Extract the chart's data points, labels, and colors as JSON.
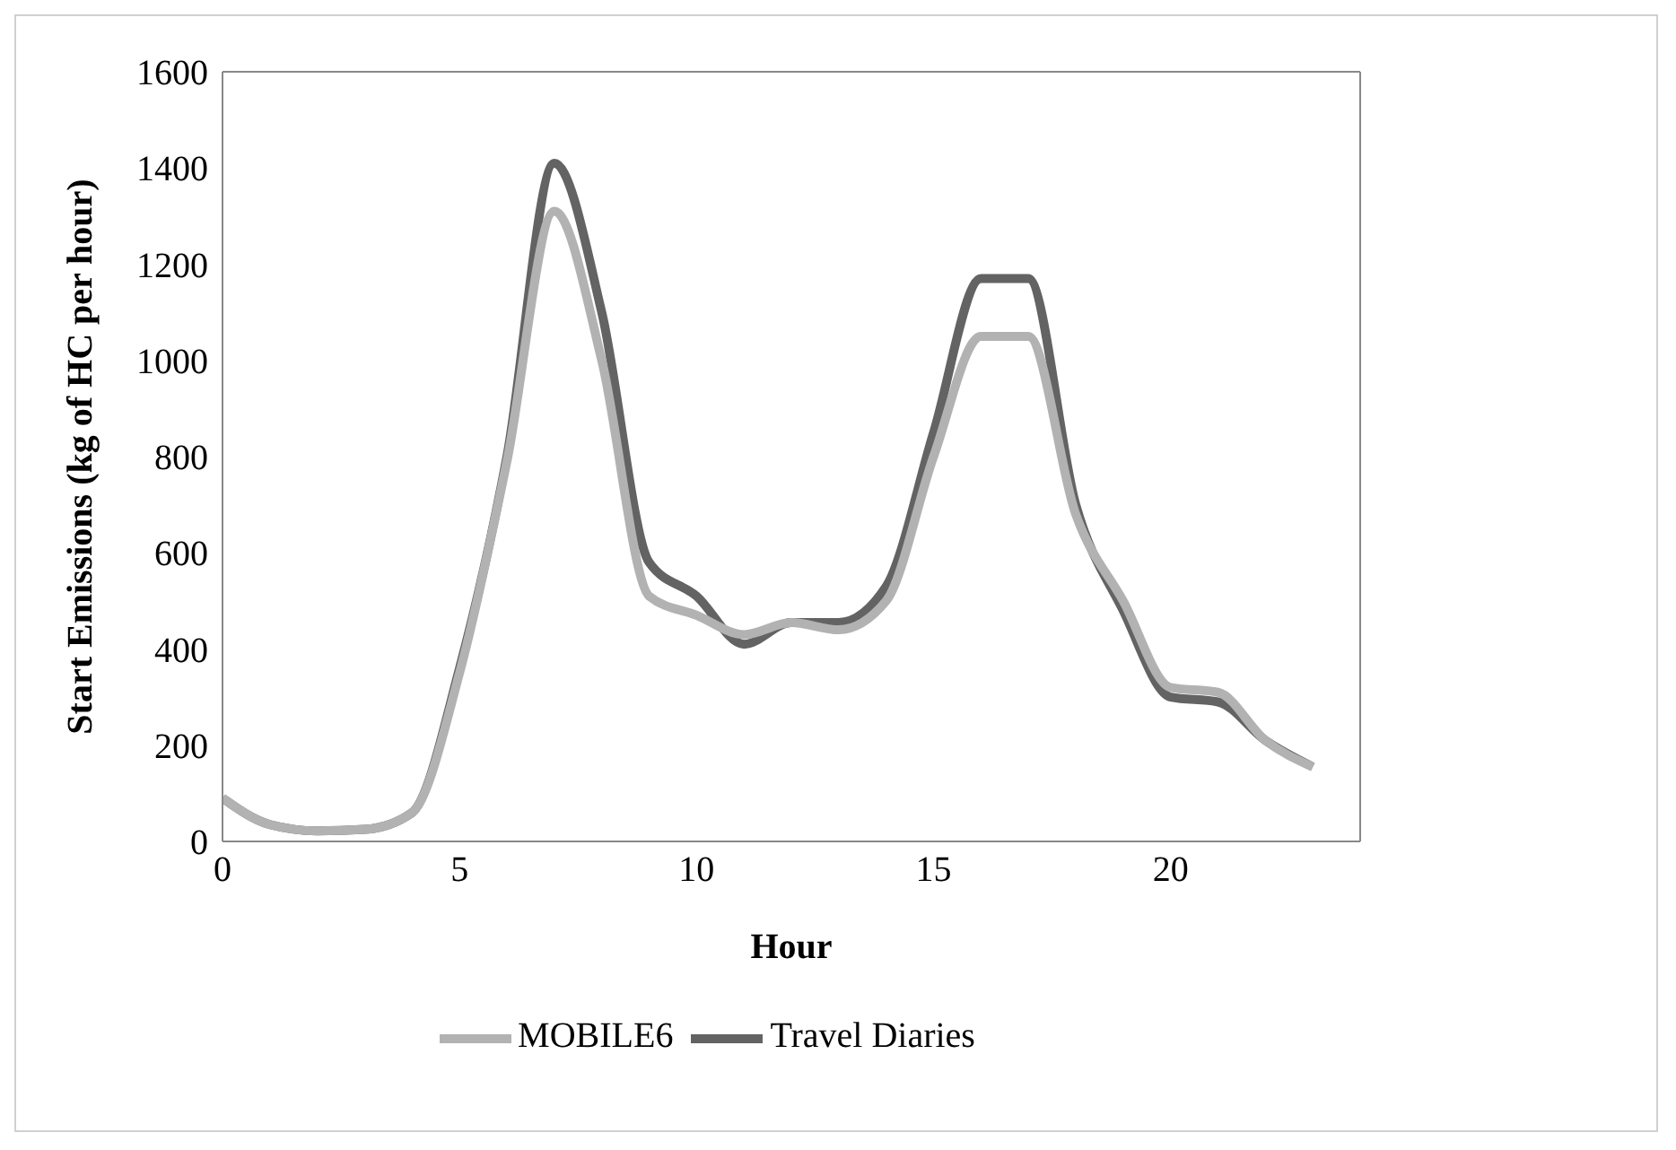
{
  "chart_data": {
    "type": "line",
    "xlabel": "Hour",
    "ylabel": "Start Emissions (kg of HC per hour)",
    "x": [
      0,
      1,
      2,
      3,
      4,
      5,
      6,
      7,
      8,
      9,
      10,
      11,
      12,
      13,
      14,
      15,
      16,
      17,
      18,
      19,
      20,
      21,
      22,
      23
    ],
    "series": [
      {
        "name": "Travel Diaries",
        "color": "#636363",
        "values": [
          90,
          35,
          22,
          25,
          60,
          360,
          800,
          1410,
          1100,
          580,
          510,
          410,
          455,
          455,
          530,
          850,
          1170,
          1170,
          700,
          480,
          300,
          290,
          210,
          155
        ]
      },
      {
        "name": "MOBILE6",
        "color": "#b2b2b2",
        "values": [
          90,
          35,
          22,
          25,
          60,
          350,
          790,
          1310,
          1000,
          510,
          470,
          430,
          455,
          440,
          500,
          800,
          1050,
          1050,
          680,
          500,
          320,
          310,
          210,
          155
        ]
      }
    ],
    "xlim": [
      0,
      24
    ],
    "xticks": [
      0,
      5,
      10,
      15,
      20
    ],
    "ylim": [
      0,
      1600
    ],
    "yticks": [
      0,
      200,
      400,
      600,
      800,
      1000,
      1200,
      1400,
      1600
    ],
    "grid": false,
    "legend": "bottom",
    "marker": "none",
    "line_style": "solid"
  }
}
